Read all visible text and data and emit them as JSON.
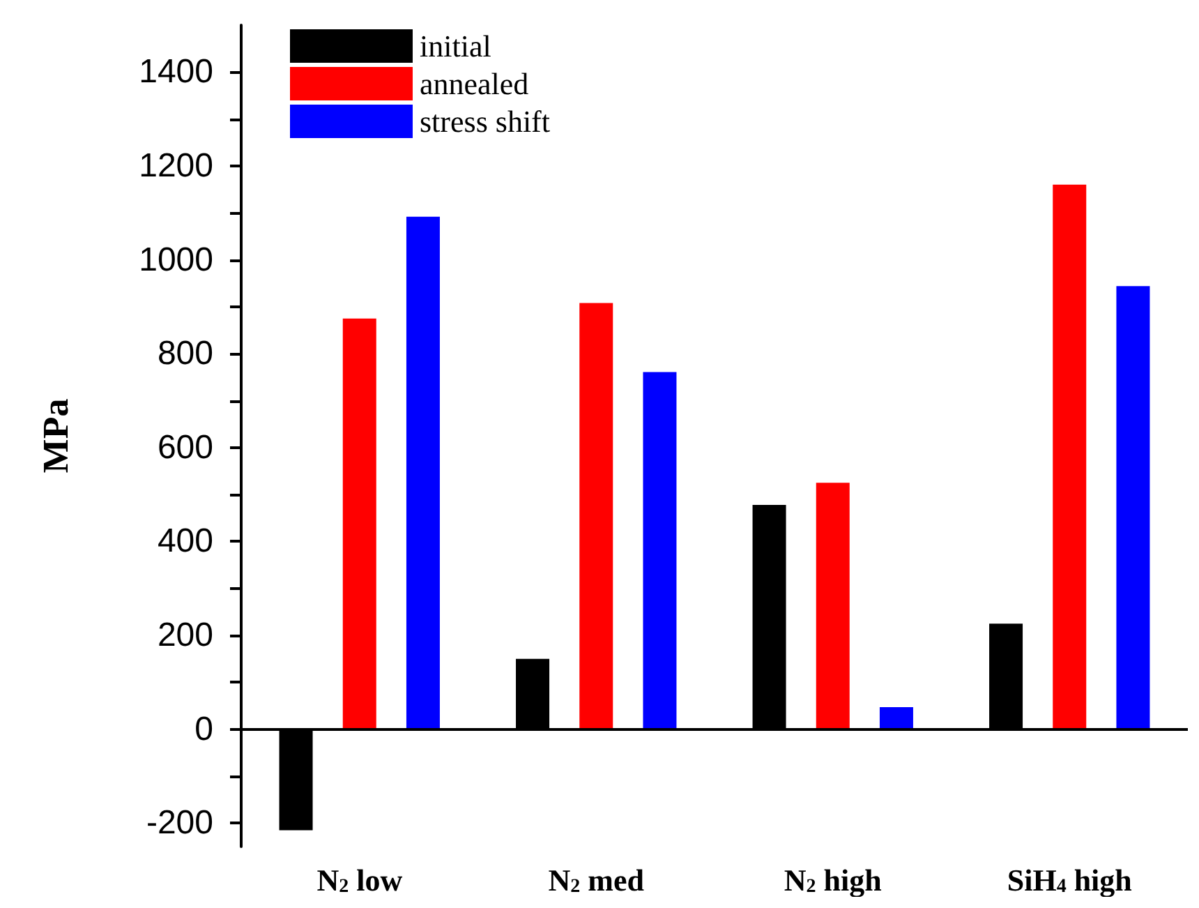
{
  "chart_data": {
    "type": "bar",
    "ylabel": "MPa",
    "categories": [
      "N$_{2}$ low",
      "N$_{2}$ med",
      "N$_{2}$ high",
      "SiH$_{4}$ high"
    ],
    "series": [
      {
        "name": "initial",
        "color": "#000000",
        "values": [
          -215,
          150,
          478,
          225
        ]
      },
      {
        "name": "annealed",
        "color": "#ff0000",
        "values": [
          875,
          908,
          525,
          1160
        ]
      },
      {
        "name": "stress shift",
        "color": "#0000ff",
        "values": [
          1092,
          761,
          47,
          944
        ]
      }
    ],
    "ylim": [
      -250,
      1500
    ],
    "yticks": [
      -200,
      {
        "value": -100,
        "label": null
      },
      0,
      {
        "value": 100,
        "label": null
      },
      200,
      {
        "value": 300,
        "label": null
      },
      400,
      {
        "value": 500,
        "label": null
      },
      600,
      {
        "value": 700,
        "label": null
      },
      800,
      {
        "value": 900,
        "label": null
      },
      1000,
      {
        "value": 1100,
        "label": null
      },
      1200,
      {
        "value": 1300,
        "label": null
      },
      1400
    ],
    "ref_lines": [
      {
        "axis": "y",
        "value": 0,
        "color": "#000000"
      }
    ],
    "grid": false,
    "legend": "top left"
  }
}
